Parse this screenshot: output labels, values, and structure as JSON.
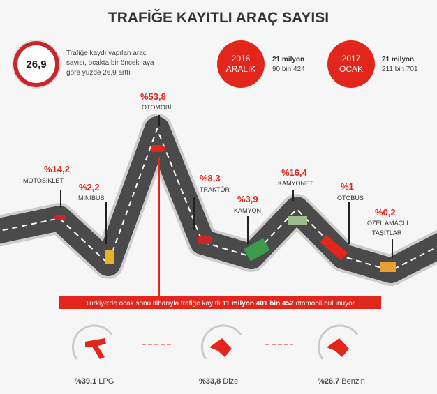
{
  "header": {
    "title": "TRAFİĞE KAYITLI ARAÇ SAYISI"
  },
  "summary": {
    "badge": "26,9",
    "note": [
      "Trafiğe kaydı yapılan araç",
      "sayısı, ocakta bir önceki aya",
      "göre yüzde 26,9 arttı"
    ]
  },
  "periods": [
    {
      "year": "2016",
      "month": "ARALIK",
      "line1": "21 milyon",
      "line2": "90 bin 424"
    },
    {
      "year": "2017",
      "month": "OCAK",
      "line1": "21 milyon",
      "line2": "211 bin 701"
    }
  ],
  "vehicles": [
    {
      "share": "%14,2",
      "label": [
        "MOTOSİKLET"
      ]
    },
    {
      "share": "%2,2",
      "label": [
        "MİNİBÜS"
      ]
    },
    {
      "share": "%53,8",
      "label": [
        "OTOMOBİL"
      ]
    },
    {
      "share": "%8,3",
      "label": [
        "TRAKTÖR"
      ]
    },
    {
      "share": "%3,9",
      "label": [
        "KAMYON"
      ]
    },
    {
      "share": "%16,4",
      "label": [
        "KAMYONET"
      ]
    },
    {
      "share": "%1",
      "label": [
        "OTOBÜS"
      ]
    },
    {
      "share": "%0,2",
      "label": [
        "ÖZEL AMAÇLI",
        "TAŞITLAR"
      ]
    }
  ],
  "banner": {
    "before": "Türkiye'de ocak sonu itibarıyla trafiğe kayıtlı ",
    "bold": "11 milyon 401 bin 452",
    "after": " otomobil bulunuyor"
  },
  "fuels": [
    {
      "share": "%39,1",
      "label": "LPG"
    },
    {
      "share": "%33,8",
      "label": "Dizel"
    },
    {
      "share": "%26,7",
      "label": "Benzin"
    }
  ]
}
